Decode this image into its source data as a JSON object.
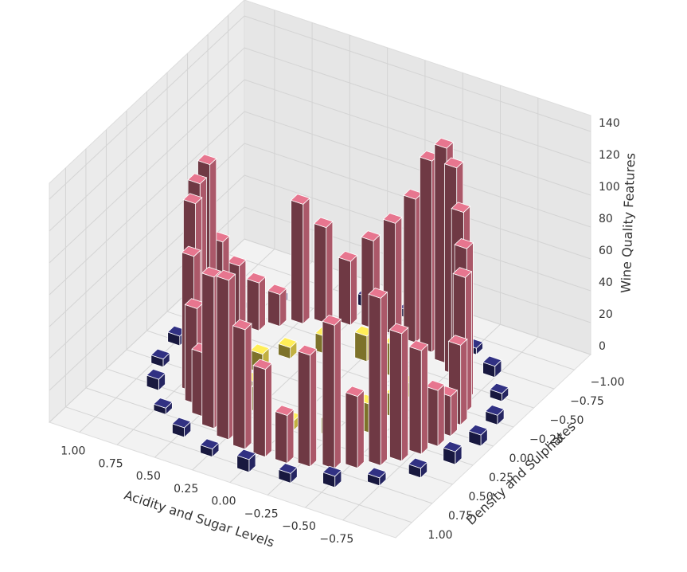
{
  "chart_data": {
    "type": "bar3d",
    "xlabel": "Acidity and Sugar Levels",
    "ylabel": "Density and Sulphates",
    "zlabel": "Wine Quality Features",
    "xlim": [
      -1.1,
      1.2
    ],
    "ylim": [
      -1.2,
      1.2
    ],
    "zlim": [
      0,
      150
    ],
    "xticks": [
      {
        "value": -0.75,
        "label": "−0.75"
      },
      {
        "value": -0.5,
        "label": "−0.50"
      },
      {
        "value": -0.25,
        "label": "−0.25"
      },
      {
        "value": 0,
        "label": "0.00"
      },
      {
        "value": 0.25,
        "label": "0.25"
      },
      {
        "value": 0.5,
        "label": "0.50"
      },
      {
        "value": 0.75,
        "label": "0.75"
      },
      {
        "value": 1,
        "label": "1.00"
      }
    ],
    "yticks": [
      {
        "value": -1,
        "label": "−1.00"
      },
      {
        "value": -0.75,
        "label": "−0.75"
      },
      {
        "value": -0.5,
        "label": "−0.50"
      },
      {
        "value": -0.25,
        "label": "−0.25"
      },
      {
        "value": 0,
        "label": "0.00"
      },
      {
        "value": 0.25,
        "label": "0.25"
      },
      {
        "value": 0.5,
        "label": "0.50"
      },
      {
        "value": 0.75,
        "label": "0.75"
      },
      {
        "value": 1,
        "label": "1.00"
      }
    ],
    "zticks": [
      0,
      20,
      40,
      60,
      80,
      100,
      120,
      140
    ],
    "grid": true,
    "series": [
      {
        "color": "#2b2b72",
        "x": [
          1,
          0.97,
          0.87,
          0.71,
          0.5,
          0.26,
          0,
          -0.26,
          -0.5,
          -0.71,
          -0.87,
          -0.97,
          -1,
          -0.97,
          -0.87,
          -0.71,
          -0.5,
          -0.26,
          0,
          0.26,
          0.5,
          0.71,
          0.87,
          0.97
        ],
        "y": [
          0,
          0.26,
          0.5,
          0.71,
          0.87,
          0.97,
          1,
          0.97,
          0.87,
          0.71,
          0.5,
          0.26,
          0,
          -0.26,
          -0.5,
          -0.71,
          -0.87,
          -0.97,
          -1,
          -0.97,
          -0.87,
          -0.71,
          -0.5,
          -0.26
        ],
        "values": [
          6,
          5,
          7,
          4,
          6,
          5,
          8,
          6,
          7,
          5,
          6,
          8,
          7,
          6,
          5,
          7,
          4,
          6,
          5,
          7,
          6,
          5,
          4,
          6
        ]
      },
      {
        "color": "#e3cf4c",
        "x": [
          0.45,
          0.39,
          0.23,
          0,
          -0.23,
          -0.39,
          -0.45,
          -0.39,
          -0.23,
          0,
          0.23,
          0.39
        ],
        "y": [
          0,
          0.23,
          0.39,
          0.45,
          0.39,
          0.23,
          0,
          -0.23,
          -0.39,
          -0.45,
          -0.39,
          -0.23
        ],
        "values": [
          12,
          8,
          15,
          6,
          10,
          18,
          14,
          9,
          20,
          16,
          11,
          7
        ]
      },
      {
        "color": "#c9677c",
        "x": [
          0.8,
          0.79,
          0.75,
          0.69,
          0.61,
          0.51,
          0.4,
          0.27,
          0.14,
          0,
          -0.14,
          -0.27,
          -0.4,
          -0.51,
          -0.61,
          -0.69,
          -0.75,
          -0.79,
          -0.8,
          -0.79,
          -0.75,
          -0.69,
          -0.61,
          -0.51,
          -0.4,
          -0.27,
          -0.14,
          0,
          0.14,
          0.27,
          0.4,
          0.51,
          0.61,
          0.69,
          0.75,
          0.79
        ],
        "y": [
          0,
          0.14,
          0.27,
          0.4,
          0.51,
          0.61,
          0.69,
          0.75,
          0.79,
          0.8,
          0.79,
          0.75,
          0.69,
          0.61,
          0.51,
          0.4,
          0.27,
          0.14,
          0,
          -0.14,
          -0.27,
          -0.4,
          -0.51,
          -0.61,
          -0.69,
          -0.75,
          -0.79,
          -0.8,
          -0.79,
          -0.75,
          -0.69,
          -0.61,
          -0.51,
          -0.4,
          -0.27,
          -0.14
        ],
        "values": [
          120,
          115,
          110,
          85,
          60,
          40,
          95,
          100,
          75,
          55,
          30,
          70,
          90,
          45,
          105,
          80,
          65,
          35,
          25,
          50,
          85,
          95,
          110,
          130,
          135,
          120,
          90,
          70,
          55,
          40,
          60,
          75,
          20,
          30,
          45,
          65
        ]
      }
    ]
  }
}
